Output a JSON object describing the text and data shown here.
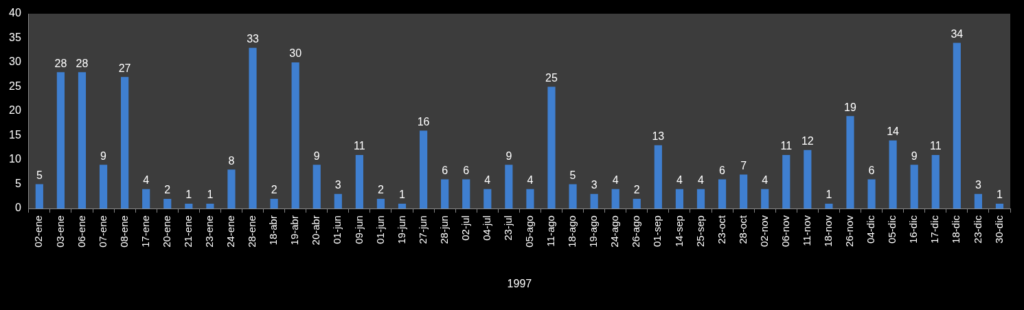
{
  "chart_data": {
    "type": "bar",
    "xlabel": "1997",
    "categories": [
      "02-ene",
      "03-ene",
      "06-ene",
      "07-ene",
      "08-ene",
      "17-ene",
      "20-ene",
      "21-ene",
      "23-ene",
      "24-ene",
      "28-ene",
      "18-abr",
      "19-abr",
      "20-abr",
      "01-jun",
      "09-jun",
      "01-jun",
      "19-jun",
      "27-jun",
      "28-jun",
      "02-jul",
      "04-jul",
      "23-jul",
      "05-ago",
      "11-ago",
      "18-ago",
      "19-ago",
      "24-ago",
      "26-ago",
      "01-sep",
      "14-sep",
      "25-sep",
      "23-oct",
      "28-oct",
      "02-nov",
      "06-nov",
      "11-nov",
      "18-nov",
      "26-nov",
      "04-dic",
      "05-dic",
      "16-dic",
      "17-dic",
      "18-dic",
      "23-dic",
      "30-dic"
    ],
    "values": [
      5,
      28,
      28,
      9,
      27,
      4,
      2,
      1,
      1,
      8,
      33,
      2,
      30,
      9,
      3,
      11,
      2,
      1,
      16,
      6,
      6,
      4,
      9,
      4,
      25,
      5,
      3,
      4,
      2,
      13,
      4,
      4,
      6,
      7,
      4,
      11,
      12,
      1,
      19,
      6,
      14,
      9,
      11,
      34,
      3,
      1
    ],
    "color": "#3f7fd0",
    "ylim": [
      0,
      40
    ],
    "yticks": [
      0,
      5,
      10,
      15,
      20,
      25,
      30,
      35,
      40
    ],
    "grid": false,
    "legend": false,
    "data_labels": true
  }
}
